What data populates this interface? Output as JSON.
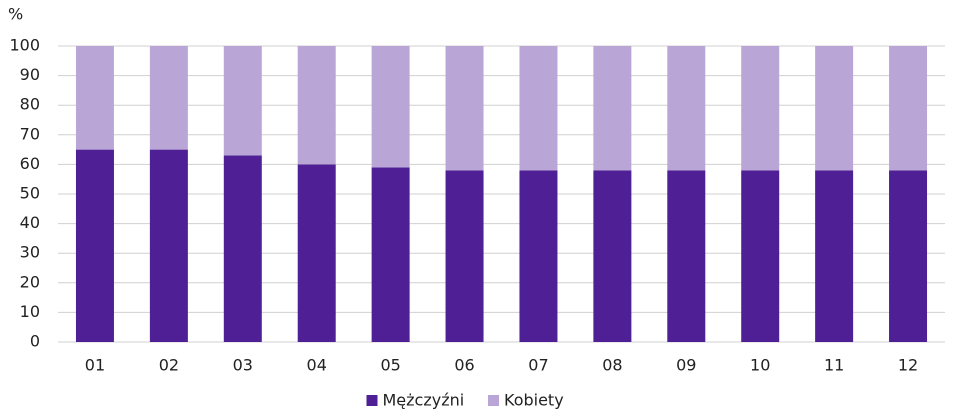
{
  "chart_data": {
    "type": "stacked_bar",
    "y_axis_label": "%",
    "categories": [
      "01",
      "02",
      "03",
      "04",
      "05",
      "06",
      "07",
      "08",
      "09",
      "10",
      "11",
      "12"
    ],
    "series": [
      {
        "name": "Mężczyźni",
        "color": "#4f1f96",
        "values": [
          65,
          65,
          63,
          60,
          59,
          58,
          58,
          58,
          58,
          58,
          58,
          58
        ]
      },
      {
        "name": "Kobiety",
        "color": "#b9a6d6",
        "values": [
          35,
          35,
          37,
          40,
          41,
          42,
          42,
          42,
          42,
          42,
          42,
          42
        ]
      }
    ],
    "ylim": [
      0,
      100
    ],
    "yticks": [
      0,
      10,
      20,
      30,
      40,
      50,
      60,
      70,
      80,
      90,
      100
    ],
    "grid": true,
    "legend": "bottom"
  }
}
